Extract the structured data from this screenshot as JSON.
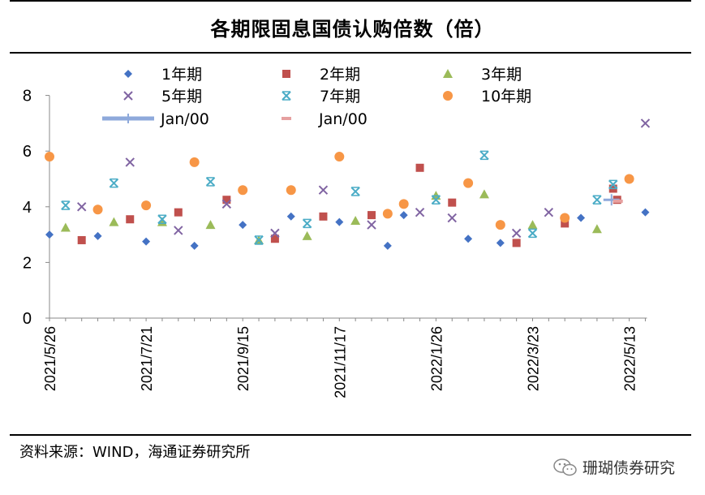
{
  "title": "各期限固息国债认购倍数（倍）",
  "source": "资料来源：WIND，海通证券研究所",
  "watermark": "珊瑚债券研究",
  "chart_data": {
    "type": "scatter",
    "title": "各期限固息国债认购倍数（倍）",
    "ylim": [
      0,
      8
    ],
    "yticks": [
      0,
      2,
      4,
      6,
      8
    ],
    "xlim": [
      0,
      37
    ],
    "xticks": [
      {
        "i": 0,
        "label": "2021/5/26"
      },
      {
        "i": 6,
        "label": "2021/7/21"
      },
      {
        "i": 12,
        "label": "2021/9/15"
      },
      {
        "i": 18,
        "label": "2021/11/17"
      },
      {
        "i": 24,
        "label": "2022/1/26"
      },
      {
        "i": 30,
        "label": "2022/3/23"
      },
      {
        "i": 36,
        "label": "2022/5/13"
      }
    ],
    "series": [
      {
        "name": "1年期",
        "marker": "diamond",
        "color": "#4472C4",
        "points": [
          [
            0,
            3.0
          ],
          [
            3,
            2.95
          ],
          [
            6,
            2.75
          ],
          [
            9,
            2.6
          ],
          [
            12,
            3.35
          ],
          [
            15,
            3.65
          ],
          [
            18,
            3.45
          ],
          [
            21,
            2.6
          ],
          [
            22,
            3.7
          ],
          [
            26,
            2.85
          ],
          [
            28,
            2.7
          ],
          [
            33,
            3.6
          ],
          [
            37,
            3.8
          ]
        ]
      },
      {
        "name": "2年期",
        "marker": "square",
        "color": "#C0504D",
        "points": [
          [
            2,
            2.8
          ],
          [
            5,
            3.55
          ],
          [
            8,
            3.8
          ],
          [
            11,
            4.25
          ],
          [
            14,
            2.85
          ],
          [
            17,
            3.65
          ],
          [
            20,
            3.7
          ],
          [
            23,
            5.4
          ],
          [
            25,
            4.15
          ],
          [
            29,
            2.7
          ],
          [
            32,
            3.4
          ],
          [
            35,
            4.65
          ],
          [
            35.25,
            4.25
          ]
        ]
      },
      {
        "name": "3年期",
        "marker": "triangle",
        "color": "#9BBB59",
        "points": [
          [
            1,
            3.25
          ],
          [
            4,
            3.45
          ],
          [
            7,
            3.45
          ],
          [
            10,
            3.35
          ],
          [
            13,
            2.8
          ],
          [
            16,
            2.95
          ],
          [
            19,
            3.5
          ],
          [
            24,
            4.4
          ],
          [
            27,
            4.45
          ],
          [
            30,
            3.35
          ],
          [
            34,
            3.2
          ]
        ]
      },
      {
        "name": "5年期",
        "marker": "x",
        "color": "#8064A2",
        "points": [
          [
            2,
            4.0
          ],
          [
            5,
            5.6
          ],
          [
            8,
            3.15
          ],
          [
            11,
            4.1
          ],
          [
            14,
            3.05
          ],
          [
            17,
            4.6
          ],
          [
            20,
            3.35
          ],
          [
            23,
            3.8
          ],
          [
            25,
            3.6
          ],
          [
            29,
            3.05
          ],
          [
            31,
            3.8
          ],
          [
            37,
            7.0
          ]
        ]
      },
      {
        "name": "7年期",
        "marker": "star",
        "color": "#4BACC6",
        "points": [
          [
            1,
            4.05
          ],
          [
            4,
            4.85
          ],
          [
            7,
            3.55
          ],
          [
            10,
            4.9
          ],
          [
            13,
            2.8
          ],
          [
            16,
            3.4
          ],
          [
            19,
            4.55
          ],
          [
            24,
            4.25
          ],
          [
            27,
            5.85
          ],
          [
            30,
            3.05
          ],
          [
            34,
            4.25
          ],
          [
            35,
            4.8
          ]
        ]
      },
      {
        "name": "10年期",
        "marker": "circle",
        "color": "#F79646",
        "points": [
          [
            0,
            5.8
          ],
          [
            3,
            3.9
          ],
          [
            6,
            4.05
          ],
          [
            9,
            5.6
          ],
          [
            12,
            4.6
          ],
          [
            15,
            4.6
          ],
          [
            18,
            5.8
          ],
          [
            21,
            3.75
          ],
          [
            22,
            4.1
          ],
          [
            26,
            4.85
          ],
          [
            28,
            3.35
          ],
          [
            32,
            3.6
          ],
          [
            36,
            5.0
          ]
        ]
      },
      {
        "name": "Jan/00",
        "marker": "plus",
        "color": "#8EA9DB",
        "points": [
          [
            34.9,
            4.25
          ]
        ]
      },
      {
        "name": "Jan/00",
        "marker": "dash",
        "color": "#E6A0A0",
        "points": [
          [
            35.3,
            4.2
          ]
        ]
      }
    ]
  }
}
